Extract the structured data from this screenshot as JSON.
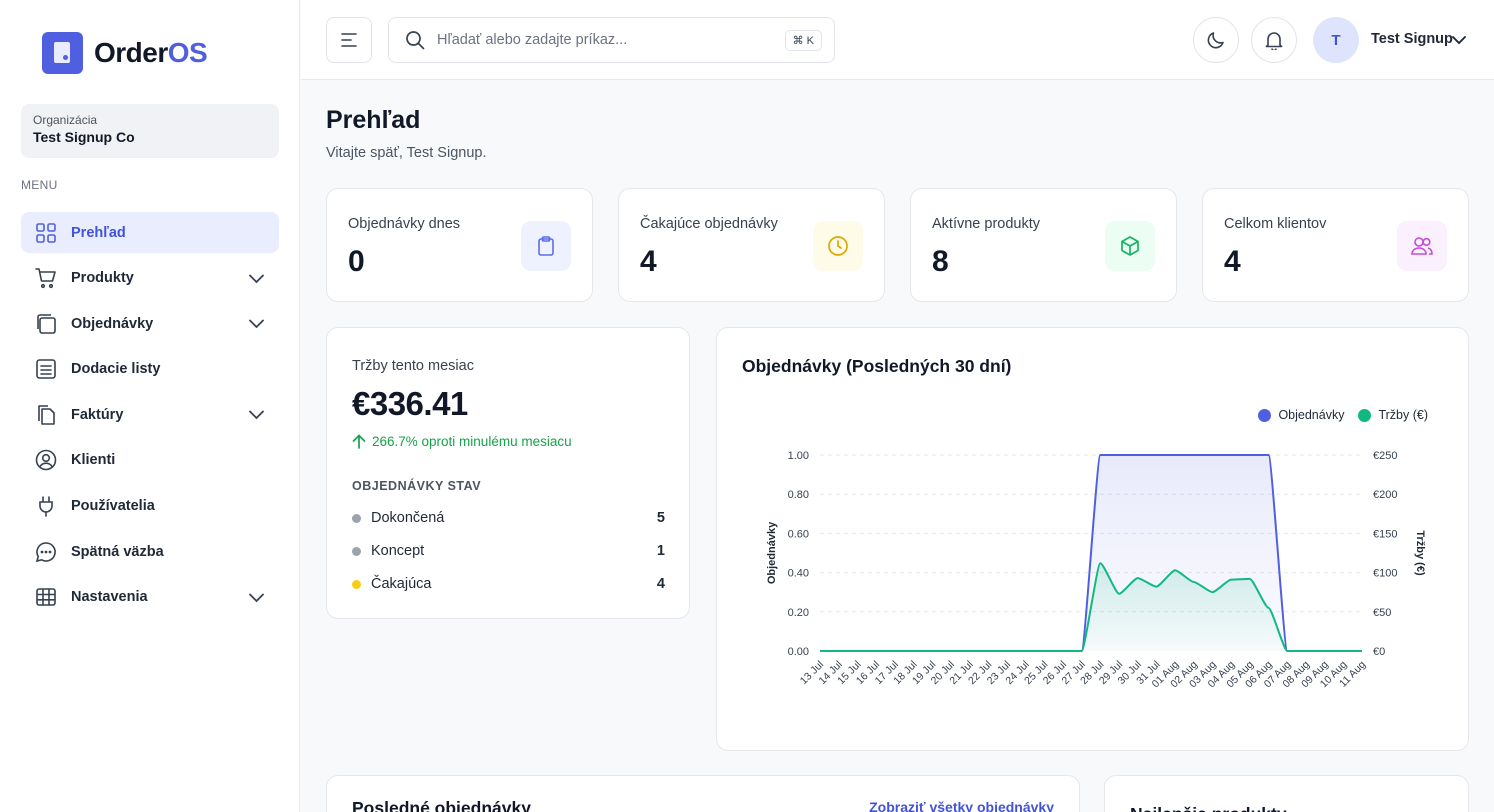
{
  "brand": {
    "name_part1": "Order",
    "name_part2": "OS",
    "accent": "#4f5fe0"
  },
  "org": {
    "label": "Organizácia",
    "name": "Test Signup Co"
  },
  "menu_title": "MENU",
  "sidebar": {
    "items": [
      {
        "label": "Prehľad",
        "icon": "grid-icon",
        "active": true,
        "has_chevron": false
      },
      {
        "label": "Produkty",
        "icon": "cart-icon",
        "active": false,
        "has_chevron": true
      },
      {
        "label": "Objednávky",
        "icon": "copy-icon",
        "active": false,
        "has_chevron": true
      },
      {
        "label": "Dodacie listy",
        "icon": "list-doc-icon",
        "active": false,
        "has_chevron": false
      },
      {
        "label": "Faktúry",
        "icon": "files-icon",
        "active": false,
        "has_chevron": true
      },
      {
        "label": "Klienti",
        "icon": "user-circle-icon",
        "active": false,
        "has_chevron": false
      },
      {
        "label": "Používatelia",
        "icon": "plug-icon",
        "active": false,
        "has_chevron": false
      },
      {
        "label": "Spätná väzba",
        "icon": "chat-icon",
        "active": false,
        "has_chevron": false
      },
      {
        "label": "Nastavenia",
        "icon": "table-icon",
        "active": false,
        "has_chevron": true
      }
    ]
  },
  "topbar": {
    "search_placeholder": "Hľadať alebo zadajte príkaz...",
    "shortcut": "⌘ K",
    "user_initial": "T",
    "user_name": "Test Signup"
  },
  "page": {
    "title": "Prehľad",
    "subtitle": "Vitajte späť, Test Signup."
  },
  "stats": [
    {
      "label": "Objednávky dnes",
      "value": "0",
      "icon": "clipboard-icon",
      "bg": "#eef2ff",
      "color": "#5b6ee8"
    },
    {
      "label": "Čakajúce objednávky",
      "value": "4",
      "icon": "clock-icon",
      "bg": "#fefbe8",
      "color": "#e0a800"
    },
    {
      "label": "Aktívne produkty",
      "value": "8",
      "icon": "box-icon",
      "bg": "#ecfdf3",
      "color": "#16b364"
    },
    {
      "label": "Celkom klientov",
      "value": "4",
      "icon": "users-icon",
      "bg": "#fbf0fd",
      "color": "#c44cd8"
    }
  ],
  "revenue": {
    "label": "Tržby tento mesiac",
    "value": "€336.41",
    "change": "266.7% oproti minulému mesiacu",
    "status_title": "OBJEDNÁVKY STAV",
    "statuses": [
      {
        "label": "Dokončená",
        "count": "5",
        "color": "#9ca3af"
      },
      {
        "label": "Koncept",
        "count": "1",
        "color": "#9ca3af"
      },
      {
        "label": "Čakajúca",
        "count": "4",
        "color": "#facc15"
      }
    ]
  },
  "chart_data": {
    "type": "area",
    "title": "Objednávky (Posledných 30 dní)",
    "ylabel": "Objednávky",
    "y2label": "Tržby (€)",
    "ylim": [
      0,
      1
    ],
    "y2lim": [
      0,
      250
    ],
    "yticks": [
      "0.00",
      "0.20",
      "0.40",
      "0.60",
      "0.80",
      "1.00"
    ],
    "y2ticks": [
      "€0",
      "€50",
      "€100",
      "€150",
      "€200",
      "€250"
    ],
    "categories": [
      "13 Jul",
      "14 Jul",
      "15 Jul",
      "16 Jul",
      "17 Jul",
      "18 Jul",
      "19 Jul",
      "20 Jul",
      "21 Jul",
      "22 Jul",
      "23 Jul",
      "24 Jul",
      "25 Jul",
      "26 Jul",
      "27 Jul",
      "28 Jul",
      "29 Jul",
      "30 Jul",
      "31 Jul",
      "01 Aug",
      "02 Aug",
      "03 Aug",
      "04 Aug",
      "05 Aug",
      "06 Aug",
      "07 Aug",
      "08 Aug",
      "09 Aug",
      "10 Aug",
      "11 Aug"
    ],
    "series": [
      {
        "name": "Objednávky",
        "axis": "left",
        "color": "#4f5fe0",
        "values": [
          0,
          0,
          0,
          0,
          0,
          0,
          0,
          0,
          0,
          0,
          0,
          0,
          0,
          0,
          0,
          1,
          1,
          1,
          1,
          1,
          1,
          1,
          1,
          1,
          1,
          0,
          0,
          0,
          0,
          0
        ]
      },
      {
        "name": "Tržby (€)",
        "axis": "right",
        "color": "#10b981",
        "values": [
          0,
          0,
          0,
          0,
          0,
          0,
          0,
          0,
          0,
          0,
          0,
          0,
          0,
          0,
          0,
          112,
          73,
          93,
          82,
          103,
          88,
          75,
          91,
          92,
          55,
          0,
          0,
          0,
          0,
          0
        ]
      }
    ],
    "legend_position": "top-right",
    "grid": true
  },
  "bottom": {
    "recent_title": "Posledné objednávky",
    "recent_link": "Zobraziť všetky objednávky",
    "top_title": "Najlepšie produkty"
  }
}
